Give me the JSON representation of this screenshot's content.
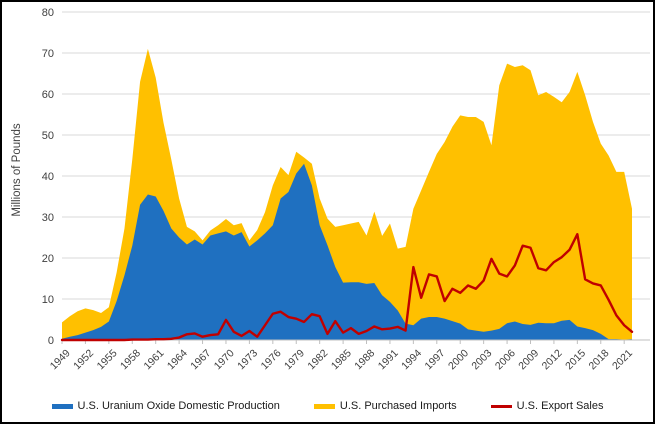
{
  "window": {
    "background": "#ffffff",
    "border_color": "#000000"
  },
  "chart_data": {
    "type": "area",
    "stacked": true,
    "title": "",
    "xlabel": "",
    "ylabel": "Millions of Pounds",
    "ylim": [
      0,
      80
    ],
    "y_ticks": [
      0,
      10,
      20,
      30,
      40,
      50,
      60,
      70,
      80
    ],
    "x_tick_years": [
      1949,
      1952,
      1955,
      1958,
      1961,
      1964,
      1967,
      1970,
      1973,
      1976,
      1979,
      1982,
      1985,
      1988,
      1991,
      1994,
      1997,
      2000,
      2003,
      2006,
      2009,
      2012,
      2015,
      2018,
      2021
    ],
    "grid": "horizontal",
    "legend_position": "bottom",
    "x": [
      1949,
      1950,
      1951,
      1952,
      1953,
      1954,
      1955,
      1956,
      1957,
      1958,
      1959,
      1960,
      1961,
      1962,
      1963,
      1964,
      1965,
      1966,
      1967,
      1968,
      1969,
      1970,
      1971,
      1972,
      1973,
      1974,
      1975,
      1976,
      1977,
      1978,
      1979,
      1980,
      1981,
      1982,
      1983,
      1984,
      1985,
      1986,
      1987,
      1988,
      1989,
      1990,
      1991,
      1992,
      1993,
      1994,
      1995,
      1996,
      1997,
      1998,
      1999,
      2000,
      2001,
      2002,
      2003,
      2004,
      2005,
      2006,
      2007,
      2008,
      2009,
      2010,
      2011,
      2012,
      2013,
      2014,
      2015,
      2016,
      2017,
      2018,
      2019,
      2020,
      2021,
      2022
    ],
    "series": [
      {
        "name": "U.S. Uranium Oxide Domestic Production",
        "type": "area",
        "color": "#1F70C0",
        "values": [
          0.3,
          0.8,
          1.2,
          1.8,
          2.4,
          3.2,
          4.5,
          9.5,
          15.8,
          23.0,
          33.0,
          35.5,
          35.0,
          31.5,
          27.2,
          25.0,
          23.3,
          24.5,
          23.3,
          25.5,
          26.0,
          26.5,
          25.5,
          26.3,
          22.8,
          24.3,
          26.0,
          28.0,
          34.5,
          36.1,
          40.6,
          43.0,
          37.7,
          28.0,
          23.1,
          17.8,
          14.0,
          14.1,
          14.1,
          13.7,
          13.9,
          10.9,
          9.3,
          7.2,
          4.0,
          3.6,
          5.2,
          5.6,
          5.6,
          5.2,
          4.6,
          4.0,
          2.6,
          2.3,
          2.0,
          2.3,
          2.7,
          4.1,
          4.5,
          3.9,
          3.7,
          4.2,
          4.1,
          4.1,
          4.7,
          4.9,
          3.3,
          2.9,
          2.4,
          1.5,
          0.2,
          0.2,
          0.1,
          0.2
        ]
      },
      {
        "name": "U.S. Purchased Imports",
        "type": "area",
        "stacked_on": "U.S. Uranium Oxide Domestic Production",
        "color": "#FFC000",
        "values": [
          4.0,
          5.0,
          5.8,
          5.9,
          4.9,
          3.4,
          3.5,
          7.0,
          11.4,
          21.0,
          30.0,
          35.5,
          29.0,
          21.5,
          16.8,
          9.5,
          4.3,
          2.0,
          1.0,
          1.2,
          2.0,
          3.0,
          2.5,
          2.2,
          1.5,
          2.5,
          5.2,
          9.7,
          7.7,
          4.1,
          5.3,
          1.5,
          5.3,
          6.5,
          6.5,
          9.8,
          14.0,
          14.3,
          14.7,
          11.8,
          17.4,
          14.5,
          19.1,
          15.1,
          18.7,
          28.4,
          31.3,
          35.4,
          39.8,
          43.1,
          47.4,
          50.8,
          51.8,
          52.1,
          51.2,
          45.2,
          59.4,
          63.3,
          62.1,
          63.1,
          62.1,
          55.5,
          56.4,
          55.2,
          53.3,
          55.6,
          62.1,
          56.8,
          50.8,
          46.4,
          44.8,
          40.8,
          40.9,
          31.8
        ]
      },
      {
        "name": "U.S. Export Sales",
        "type": "line",
        "color": "#C00000",
        "values": [
          0,
          0,
          0,
          0,
          0,
          0,
          0,
          0,
          0,
          0.1,
          0.1,
          0.1,
          0.2,
          0.2,
          0.3,
          0.6,
          1.4,
          1.6,
          0.8,
          1.2,
          1.4,
          4.9,
          2.0,
          1.0,
          2.2,
          0.8,
          3.6,
          6.4,
          6.9,
          5.6,
          5.2,
          4.4,
          6.3,
          5.8,
          1.5,
          4.6,
          1.8,
          2.9,
          1.5,
          2.2,
          3.3,
          2.6,
          2.8,
          3.2,
          2.3,
          17.8,
          10.3,
          16.0,
          15.5,
          9.5,
          12.5,
          11.5,
          13.3,
          12.5,
          14.5,
          19.8,
          16.2,
          15.5,
          18.2,
          23.0,
          22.5,
          17.5,
          17.0,
          19.0,
          20.2,
          22.0,
          25.8,
          14.8,
          13.8,
          13.3,
          9.8,
          6.0,
          3.6,
          2.0
        ]
      }
    ],
    "axis_colors": {
      "gridline": "#D9D9D9",
      "axis_line": "#BFBFBF",
      "tick_label": "#404040"
    }
  }
}
